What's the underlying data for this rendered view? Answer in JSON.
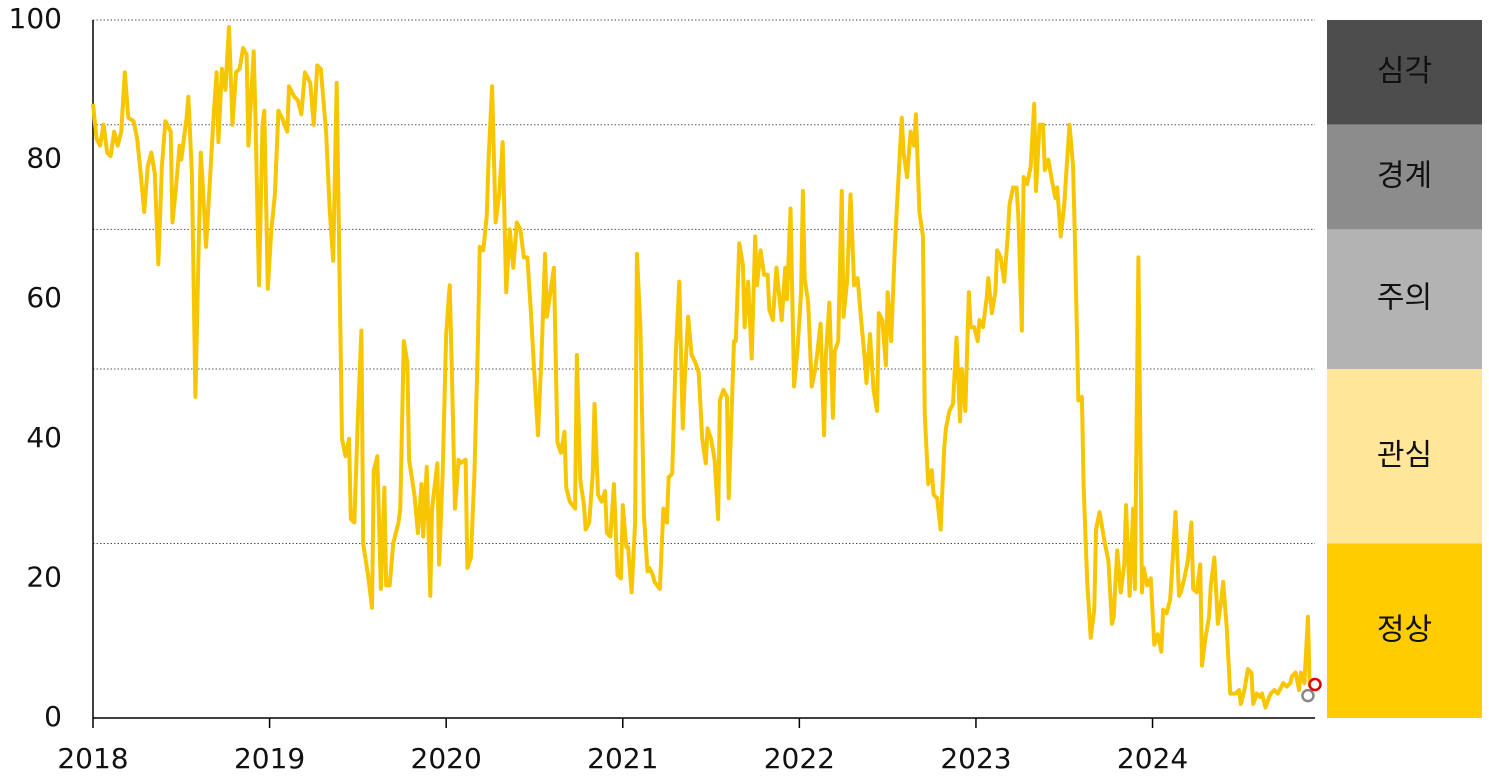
{
  "chart_data": {
    "type": "line",
    "color": "#f7c600",
    "xlim": [
      2018,
      2024.92
    ],
    "xticks": [
      2018,
      2019,
      2020,
      2021,
      2022,
      2023,
      2024
    ],
    "ylim": [
      0,
      100
    ],
    "yticks": [
      0,
      20,
      40,
      60,
      80,
      100
    ],
    "zones": [
      {
        "label": "심각",
        "from": 85,
        "to": 100,
        "color": "#4d4d4d",
        "text_color": "#ffffff"
      },
      {
        "label": "경계",
        "from": 70,
        "to": 85,
        "color": "#8c8c8c",
        "text_color": "#ffffff"
      },
      {
        "label": "주의",
        "from": 50,
        "to": 70,
        "color": "#b3b3b3",
        "text_color": "#111111"
      },
      {
        "label": "관심",
        "from": 25,
        "to": 50,
        "color": "#ffe699",
        "text_color": "#111111"
      },
      {
        "label": "정상",
        "from": 0,
        "to": 25,
        "color": "#ffcc00",
        "text_color": "#111111"
      }
    ],
    "points": [
      {
        "x": 2024.88,
        "y": 3.2,
        "color": "#888888"
      },
      {
        "x": 2024.92,
        "y": 4.8,
        "color": "#e00000"
      }
    ],
    "x": [
      2018.0,
      2018.02,
      2018.04,
      2018.06,
      2018.08,
      2018.1,
      2018.12,
      2018.14,
      2018.16,
      2018.18,
      2018.2,
      2018.23,
      2018.25,
      2018.27,
      2018.29,
      2018.31,
      2018.33,
      2018.35,
      2018.37,
      2018.39,
      2018.41,
      2018.44,
      2018.45,
      2018.47,
      2018.49,
      2018.5,
      2018.53,
      2018.54,
      2018.56,
      2018.58,
      2018.61,
      2018.62,
      2018.64,
      2018.66,
      2018.68,
      2018.7,
      2018.71,
      2018.73,
      2018.75,
      2018.77,
      2018.79,
      2018.81,
      2018.83,
      2018.85,
      2018.87,
      2018.88,
      2018.91,
      2018.92,
      2018.94,
      2018.96,
      2018.97,
      2018.99,
      2019.01,
      2019.03,
      2019.05,
      2019.07,
      2019.1,
      2019.11,
      2019.14,
      2019.16,
      2019.18,
      2019.2,
      2019.23,
      2019.25,
      2019.27,
      2019.29,
      2019.32,
      2019.34,
      2019.36,
      2019.38,
      2019.4,
      2019.41,
      2019.43,
      2019.45,
      2019.46,
      2019.48,
      2019.5,
      2019.52,
      2019.53,
      2019.56,
      2019.58,
      2019.59,
      2019.61,
      2019.63,
      2019.65,
      2019.66,
      2019.68,
      2019.7,
      2019.73,
      2019.74,
      2019.76,
      2019.78,
      2019.79,
      2019.82,
      2019.84,
      2019.86,
      2019.87,
      2019.89,
      2019.91,
      2019.92,
      2019.95,
      2019.96,
      2019.98,
      2020.0,
      2020.02,
      2020.03,
      2020.05,
      2020.07,
      2020.08,
      2020.11,
      2020.12,
      2020.14,
      2020.16,
      2020.18,
      2020.19,
      2020.21,
      2020.23,
      2020.24,
      2020.26,
      2020.28,
      2020.3,
      2020.32,
      2020.34,
      2020.36,
      2020.38,
      2020.4,
      2020.42,
      2020.44,
      2020.46,
      2020.48,
      2020.5,
      2020.52,
      2020.54,
      2020.56,
      2020.57,
      2020.59,
      2020.61,
      2020.63,
      2020.65,
      2020.67,
      2020.68,
      2020.7,
      2020.73,
      2020.74,
      2020.76,
      2020.78,
      2020.79,
      2020.81,
      2020.83,
      2020.84,
      2020.86,
      2020.88,
      2020.9,
      2020.91,
      2020.93,
      2020.95,
      2020.97,
      2020.99,
      2021.0,
      2021.02,
      2021.03,
      2021.05,
      2021.07,
      2021.08,
      2021.1,
      2021.12,
      2021.14,
      2021.15,
      2021.17,
      2021.18,
      2021.21,
      2021.23,
      2021.25,
      2021.26,
      2021.28,
      2021.3,
      2021.32,
      2021.34,
      2021.35,
      2021.37,
      2021.39,
      2021.41,
      2021.43,
      2021.45,
      2021.47,
      2021.48,
      2021.5,
      2021.52,
      2021.54,
      2021.55,
      2021.57,
      2021.59,
      2021.6,
      2021.63,
      2021.64,
      2021.66,
      2021.68,
      2021.69,
      2021.71,
      2021.73,
      2021.75,
      2021.76,
      2021.78,
      2021.8,
      2021.82,
      2021.83,
      2021.85,
      2021.87,
      2021.88,
      2021.9,
      2021.92,
      2021.93,
      2021.95,
      2021.97,
      2021.99,
      2022.01,
      2022.02,
      2022.03,
      2022.05,
      2022.07,
      2022.09,
      2022.1,
      2022.12,
      2022.14,
      2022.15,
      2022.17,
      2022.19,
      2022.2,
      2022.22,
      2022.24,
      2022.25,
      2022.27,
      2022.29,
      2022.31,
      2022.33,
      2022.35,
      2022.37,
      2022.38,
      2022.4,
      2022.42,
      2022.44,
      2022.45,
      2022.47,
      2022.49,
      2022.5,
      2022.52,
      2022.54,
      2022.55,
      2022.58,
      2022.59,
      2022.61,
      2022.63,
      2022.65,
      2022.66,
      2022.68,
      2022.7,
      2022.71,
      2022.73,
      2022.75,
      2022.76,
      2022.78,
      2022.8,
      2022.82,
      2022.83,
      2022.85,
      2022.87,
      2022.89,
      2022.91,
      2022.92,
      2022.94,
      2022.96,
      2022.97,
      2022.99,
      2023.01,
      2023.02,
      2023.04,
      2023.06,
      2023.07,
      2023.09,
      2023.11,
      2023.12,
      2023.14,
      2023.16,
      2023.18,
      2023.19,
      2023.21,
      2023.23,
      2023.24,
      2023.26,
      2023.27,
      2023.29,
      2023.31,
      2023.33,
      2023.34,
      2023.36,
      2023.38,
      2023.39,
      2023.41,
      2023.43,
      2023.45,
      2023.46,
      2023.48,
      2023.5,
      2023.51,
      2023.53,
      2023.55,
      2023.56,
      2023.58,
      2023.6,
      2023.61,
      2023.63,
      2023.65,
      2023.67,
      2023.68,
      2023.7,
      2023.72,
      2023.73,
      2023.75,
      2023.77,
      2023.78,
      2023.8,
      2023.82,
      2023.84,
      2023.85,
      2023.87,
      2023.89,
      2023.9,
      2023.92,
      2023.94,
      2023.95,
      2023.97,
      2023.99,
      2024.01,
      2024.03,
      2024.05,
      2024.06,
      2024.08,
      2024.1,
      2024.11,
      2024.13,
      2024.15,
      2024.16,
      2024.18,
      2024.2,
      2024.22,
      2024.23,
      2024.25,
      2024.27,
      2024.28,
      2024.3,
      2024.32,
      2024.33,
      2024.35,
      2024.37,
      2024.39,
      2024.4,
      2024.42,
      2024.44,
      2024.45,
      2024.47,
      2024.49,
      2024.5,
      2024.52,
      2024.54,
      2024.56,
      2024.57,
      2024.59,
      2024.61,
      2024.62,
      2024.64,
      2024.66,
      2024.67,
      2024.69,
      2024.71,
      2024.73,
      2024.74,
      2024.76,
      2024.78,
      2024.79,
      2024.81,
      2024.83,
      2024.84,
      2024.86,
      2024.88,
      2024.89
    ],
    "values": [
      88,
      83,
      82,
      85,
      81,
      80.5,
      84,
      82,
      84,
      92.5,
      86,
      85.5,
      83,
      78,
      72.5,
      79,
      81,
      78,
      65,
      79,
      85.5,
      84,
      71,
      76,
      82,
      80,
      86,
      89,
      78,
      46,
      81,
      77,
      67.5,
      76,
      85,
      92.5,
      82.5,
      93,
      90,
      99,
      85,
      92.5,
      93,
      96,
      95,
      82,
      95.5,
      86,
      62,
      85,
      87,
      61.5,
      70,
      75,
      87,
      86,
      84,
      90.5,
      89,
      88.5,
      86.5,
      92.5,
      91,
      85,
      93.5,
      93,
      84,
      73,
      65.5,
      91,
      57,
      40,
      37.5,
      40,
      28.5,
      28,
      43,
      55.5,
      25,
      20,
      15.8,
      35.5,
      37.5,
      18.5,
      33,
      19,
      19,
      25,
      28,
      30,
      54,
      51,
      37,
      32,
      26.5,
      33.5,
      26,
      36,
      17.5,
      30,
      36.5,
      22,
      35,
      55,
      62,
      52,
      30,
      37,
      36.5,
      37,
      21.5,
      23,
      35,
      54,
      67.5,
      67,
      72,
      80,
      90.5,
      71,
      75,
      82.5,
      61,
      70,
      64.5,
      71,
      70,
      66,
      66,
      58,
      49,
      40.5,
      52,
      66.5,
      57.5,
      61,
      64.5,
      39.5,
      38,
      41,
      33,
      31,
      30,
      52,
      34,
      30.5,
      27,
      28,
      35,
      45,
      32,
      31,
      32.5,
      26.5,
      26,
      33.5,
      20.5,
      20,
      30.5,
      24.5,
      24.5,
      18,
      28,
      66.5,
      56,
      29,
      21,
      21.5,
      20.5,
      19.5,
      18.5,
      30,
      28,
      34.5,
      35,
      52,
      62.5,
      41.5,
      48,
      57.5,
      52,
      51,
      49.5,
      40,
      36.5,
      41.5,
      40,
      37,
      28.5,
      45.5,
      47,
      46,
      31.5,
      54,
      54,
      68,
      65,
      56,
      62.5,
      51.5,
      69,
      62,
      67,
      63.5,
      63.5,
      58.5,
      57,
      64.5,
      62,
      57,
      64.5,
      60,
      73,
      47.5,
      53,
      61,
      75.5,
      63,
      59.5,
      47.5,
      50,
      52,
      56.5,
      40.5,
      52,
      59.5,
      43,
      52.5,
      54,
      75.5,
      57.5,
      62.5,
      75,
      62,
      63,
      57,
      51.5,
      48,
      55,
      47,
      44,
      58,
      57,
      50.5,
      61,
      54,
      67,
      72,
      86,
      81,
      77.5,
      84,
      82,
      86.5,
      72.5,
      69,
      43.5,
      33.5,
      35.5,
      32,
      31.5,
      27,
      38.5,
      41.5,
      44,
      45,
      54.5,
      42.5,
      50,
      44,
      61,
      56,
      56,
      54,
      57,
      56,
      60,
      63,
      58,
      61,
      67,
      66,
      62.5,
      69,
      73.5,
      76,
      76,
      72,
      55.5,
      77.5,
      76.5,
      79,
      88,
      75.5,
      85,
      85,
      78.5,
      80,
      77,
      74.5,
      76,
      69,
      73.5,
      77.5,
      85,
      79,
      69,
      45.5,
      46,
      33,
      19.5,
      11.5,
      15.5,
      27,
      29.5,
      26.5,
      25,
      22.5,
      13.5,
      14.5,
      24,
      18,
      22,
      30.5,
      17.5,
      30,
      18.5,
      66,
      18,
      21.5,
      19,
      20,
      10.5,
      12,
      9.5,
      15.5,
      15,
      17,
      21,
      29.5,
      17.5,
      18,
      20,
      22.5,
      28,
      18.5,
      18,
      22,
      7.5,
      11.5,
      14.5,
      19,
      23,
      13.5,
      17,
      19.5,
      13,
      3.5,
      3.5,
      3.5,
      4,
      2,
      4,
      7,
      6.5,
      2,
      3.5,
      3,
      3.5,
      1.5,
      3,
      3.5,
      4,
      3.5,
      4.5,
      5,
      4.5,
      5,
      6,
      6.5,
      4,
      6.5,
      5,
      14.5,
      4.5
    ]
  }
}
